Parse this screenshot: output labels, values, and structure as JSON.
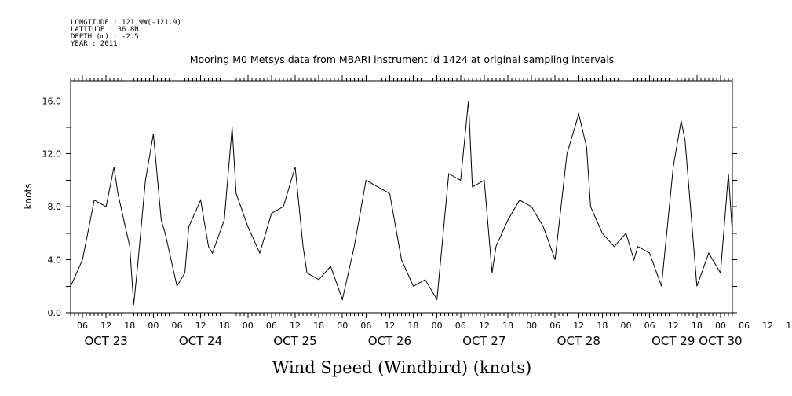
{
  "header": {
    "longitude": "LONGITUDE : 121.9W(-121.9)",
    "latitude": "LATITUDE : 36.8N",
    "depth": "DEPTH (m) : -2.5",
    "year": "YEAR : 2011"
  },
  "chart_data": {
    "type": "line",
    "title": "Mooring M0 Metsys data from MBARI instrument id 1424 at original sampling intervals",
    "xlabel": "Wind Speed (Windbird) (knots)",
    "ylabel": "knots",
    "ylim": [
      0,
      17.5
    ],
    "yticks": [
      {
        "value": 0,
        "label": "0.0"
      },
      {
        "value": 4,
        "label": "4.0"
      },
      {
        "value": 8,
        "label": "8.0"
      },
      {
        "value": 12,
        "label": "12.0"
      },
      {
        "value": 16,
        "label": "16.0"
      }
    ],
    "xlim": [
      "2011-10-23 03:00",
      "2011-10-30 03:00"
    ],
    "hour_labels": [
      "06",
      "12",
      "18",
      "00",
      "06",
      "12",
      "18",
      "00",
      "06",
      "12",
      "18",
      "00",
      "06",
      "12",
      "18",
      "00",
      "06",
      "12",
      "18",
      "00",
      "06",
      "12",
      "18",
      "00",
      "06",
      "12",
      "18",
      "00",
      "06",
      "12",
      "18",
      "00"
    ],
    "date_labels": [
      "OCT 23",
      "OCT 24",
      "OCT 25",
      "OCT 26",
      "OCT 27",
      "OCT 28",
      "OCT 29",
      "OCT 30"
    ],
    "grid": false,
    "series": [
      {
        "hours_since_oct23_00": [
          3,
          6,
          9,
          12,
          14,
          15,
          18,
          19,
          20,
          22,
          24,
          26,
          27,
          30,
          32,
          33,
          36,
          38,
          39,
          42,
          44,
          45,
          48,
          51,
          54,
          57,
          60,
          62,
          63,
          66,
          69,
          72,
          75,
          78,
          81,
          84,
          87,
          90,
          93,
          96,
          99,
          102,
          104,
          105,
          108,
          110,
          111,
          114,
          117,
          120,
          123,
          126,
          129,
          132,
          134,
          135,
          138,
          141,
          144,
          146,
          147,
          150,
          153,
          156,
          158,
          159,
          162,
          165,
          168,
          170,
          171
        ],
        "values": [
          2.0,
          4.0,
          8.5,
          8.0,
          11.0,
          9.0,
          5.0,
          0.6,
          3.5,
          10.0,
          13.5,
          7.0,
          6.0,
          2.0,
          3.0,
          6.5,
          8.5,
          5.0,
          4.5,
          7.0,
          14.0,
          9.0,
          6.5,
          4.5,
          7.5,
          8.0,
          11.0,
          5.0,
          3.0,
          2.5,
          3.5,
          1.0,
          5.0,
          10.0,
          9.5,
          9.0,
          4.0,
          2.0,
          2.5,
          1.0,
          10.5,
          10.0,
          16.0,
          9.5,
          10.0,
          3.0,
          5.0,
          7.0,
          8.5,
          8.0,
          6.5,
          4.0,
          12.0,
          15.0,
          12.5,
          8.0,
          6.0,
          5.0,
          6.0,
          4.0,
          5.0,
          4.5,
          2.0,
          11.0,
          14.5,
          13.0,
          2.0,
          4.5,
          3.0,
          10.5,
          6.0
        ]
      }
    ]
  }
}
